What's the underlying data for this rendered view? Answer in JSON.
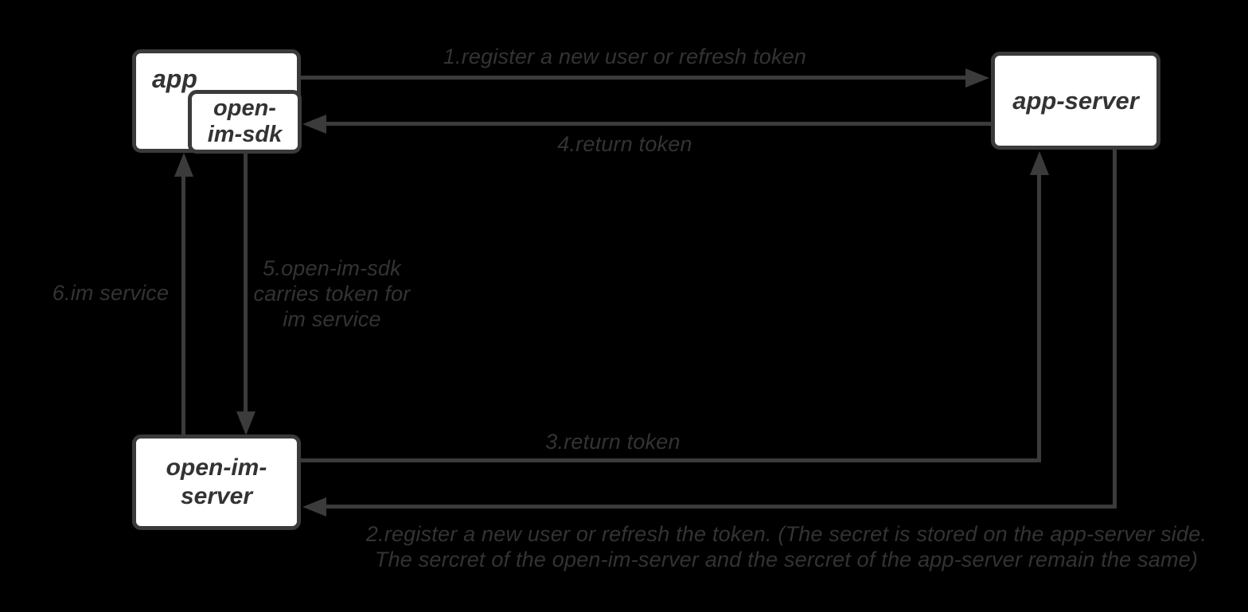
{
  "colors": {
    "background": "#000000",
    "box_fill": "#ffffff",
    "box_border": "#3b3b3b",
    "line": "#3b3b3b",
    "text": "#333333"
  },
  "nodes": {
    "app": {
      "label": "app"
    },
    "open_im_sdk": {
      "line1": "open-",
      "line2": "im-sdk"
    },
    "app_server": {
      "label": "app-server"
    },
    "open_im_server": {
      "line1": "open-im-",
      "line2": "server"
    }
  },
  "edges": {
    "e1": {
      "from": "app",
      "to": "app-server",
      "direction": "right",
      "label": "1.register a new user or refresh token"
    },
    "e2": {
      "from": "app-server",
      "to": "open-im-server",
      "direction": "down-then-left",
      "line1": "2.register a new user or refresh the token. (The secret is stored on the app-server side.",
      "line2": "The sercret of the open-im-server and the sercret of the app-server remain the same)"
    },
    "e3": {
      "from": "open-im-server",
      "to": "app-server",
      "direction": "right-then-up",
      "label": "3.return token"
    },
    "e4": {
      "from": "app-server",
      "to": "open-im-sdk",
      "direction": "left",
      "label": "4.return token"
    },
    "e5": {
      "from": "open-im-sdk",
      "to": "open-im-server",
      "direction": "down",
      "line1": "5.open-im-sdk",
      "line2": "carries token for",
      "line3": "im service"
    },
    "e6": {
      "from": "open-im-server",
      "to": "app",
      "direction": "up",
      "label": "6.im service"
    }
  }
}
